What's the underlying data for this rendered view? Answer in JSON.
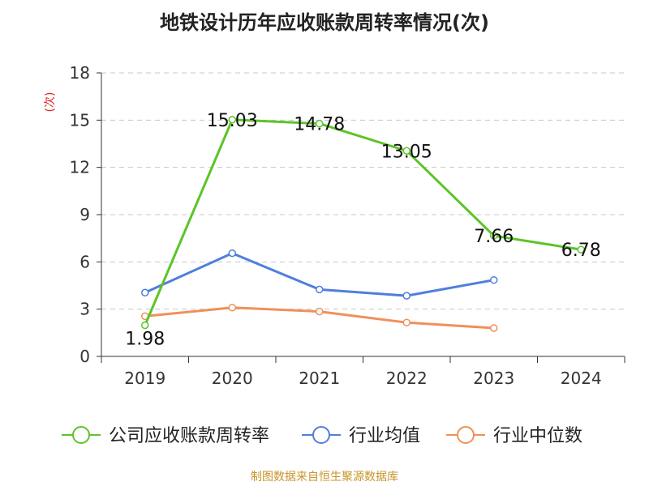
{
  "title": "地铁设计历年应收账款周转率情况(次)",
  "source": "制图数据来自恒生聚源数据库",
  "chart_data": {
    "type": "line",
    "ylabel": "(次)",
    "ylim": [
      0,
      18
    ],
    "yticks": [
      0,
      3,
      6,
      9,
      12,
      15,
      18
    ],
    "categories": [
      "2019",
      "2020",
      "2021",
      "2022",
      "2023",
      "2024"
    ],
    "grid": true,
    "legend_position": "bottom",
    "series": [
      {
        "name": "公司应收账款周转率",
        "color": "#5cc427",
        "values": [
          1.98,
          15.03,
          14.78,
          13.05,
          7.66,
          6.78
        ],
        "labels": [
          "1.98",
          "15.03",
          "14.78",
          "13.05",
          "7.66",
          "6.78"
        ]
      },
      {
        "name": "行业均值",
        "color": "#4f7fdc",
        "values": [
          4.05,
          6.55,
          4.25,
          3.85,
          4.85,
          null
        ]
      },
      {
        "name": "行业中位数",
        "color": "#f0905a",
        "values": [
          2.55,
          3.1,
          2.85,
          2.15,
          1.8,
          null
        ]
      }
    ]
  }
}
